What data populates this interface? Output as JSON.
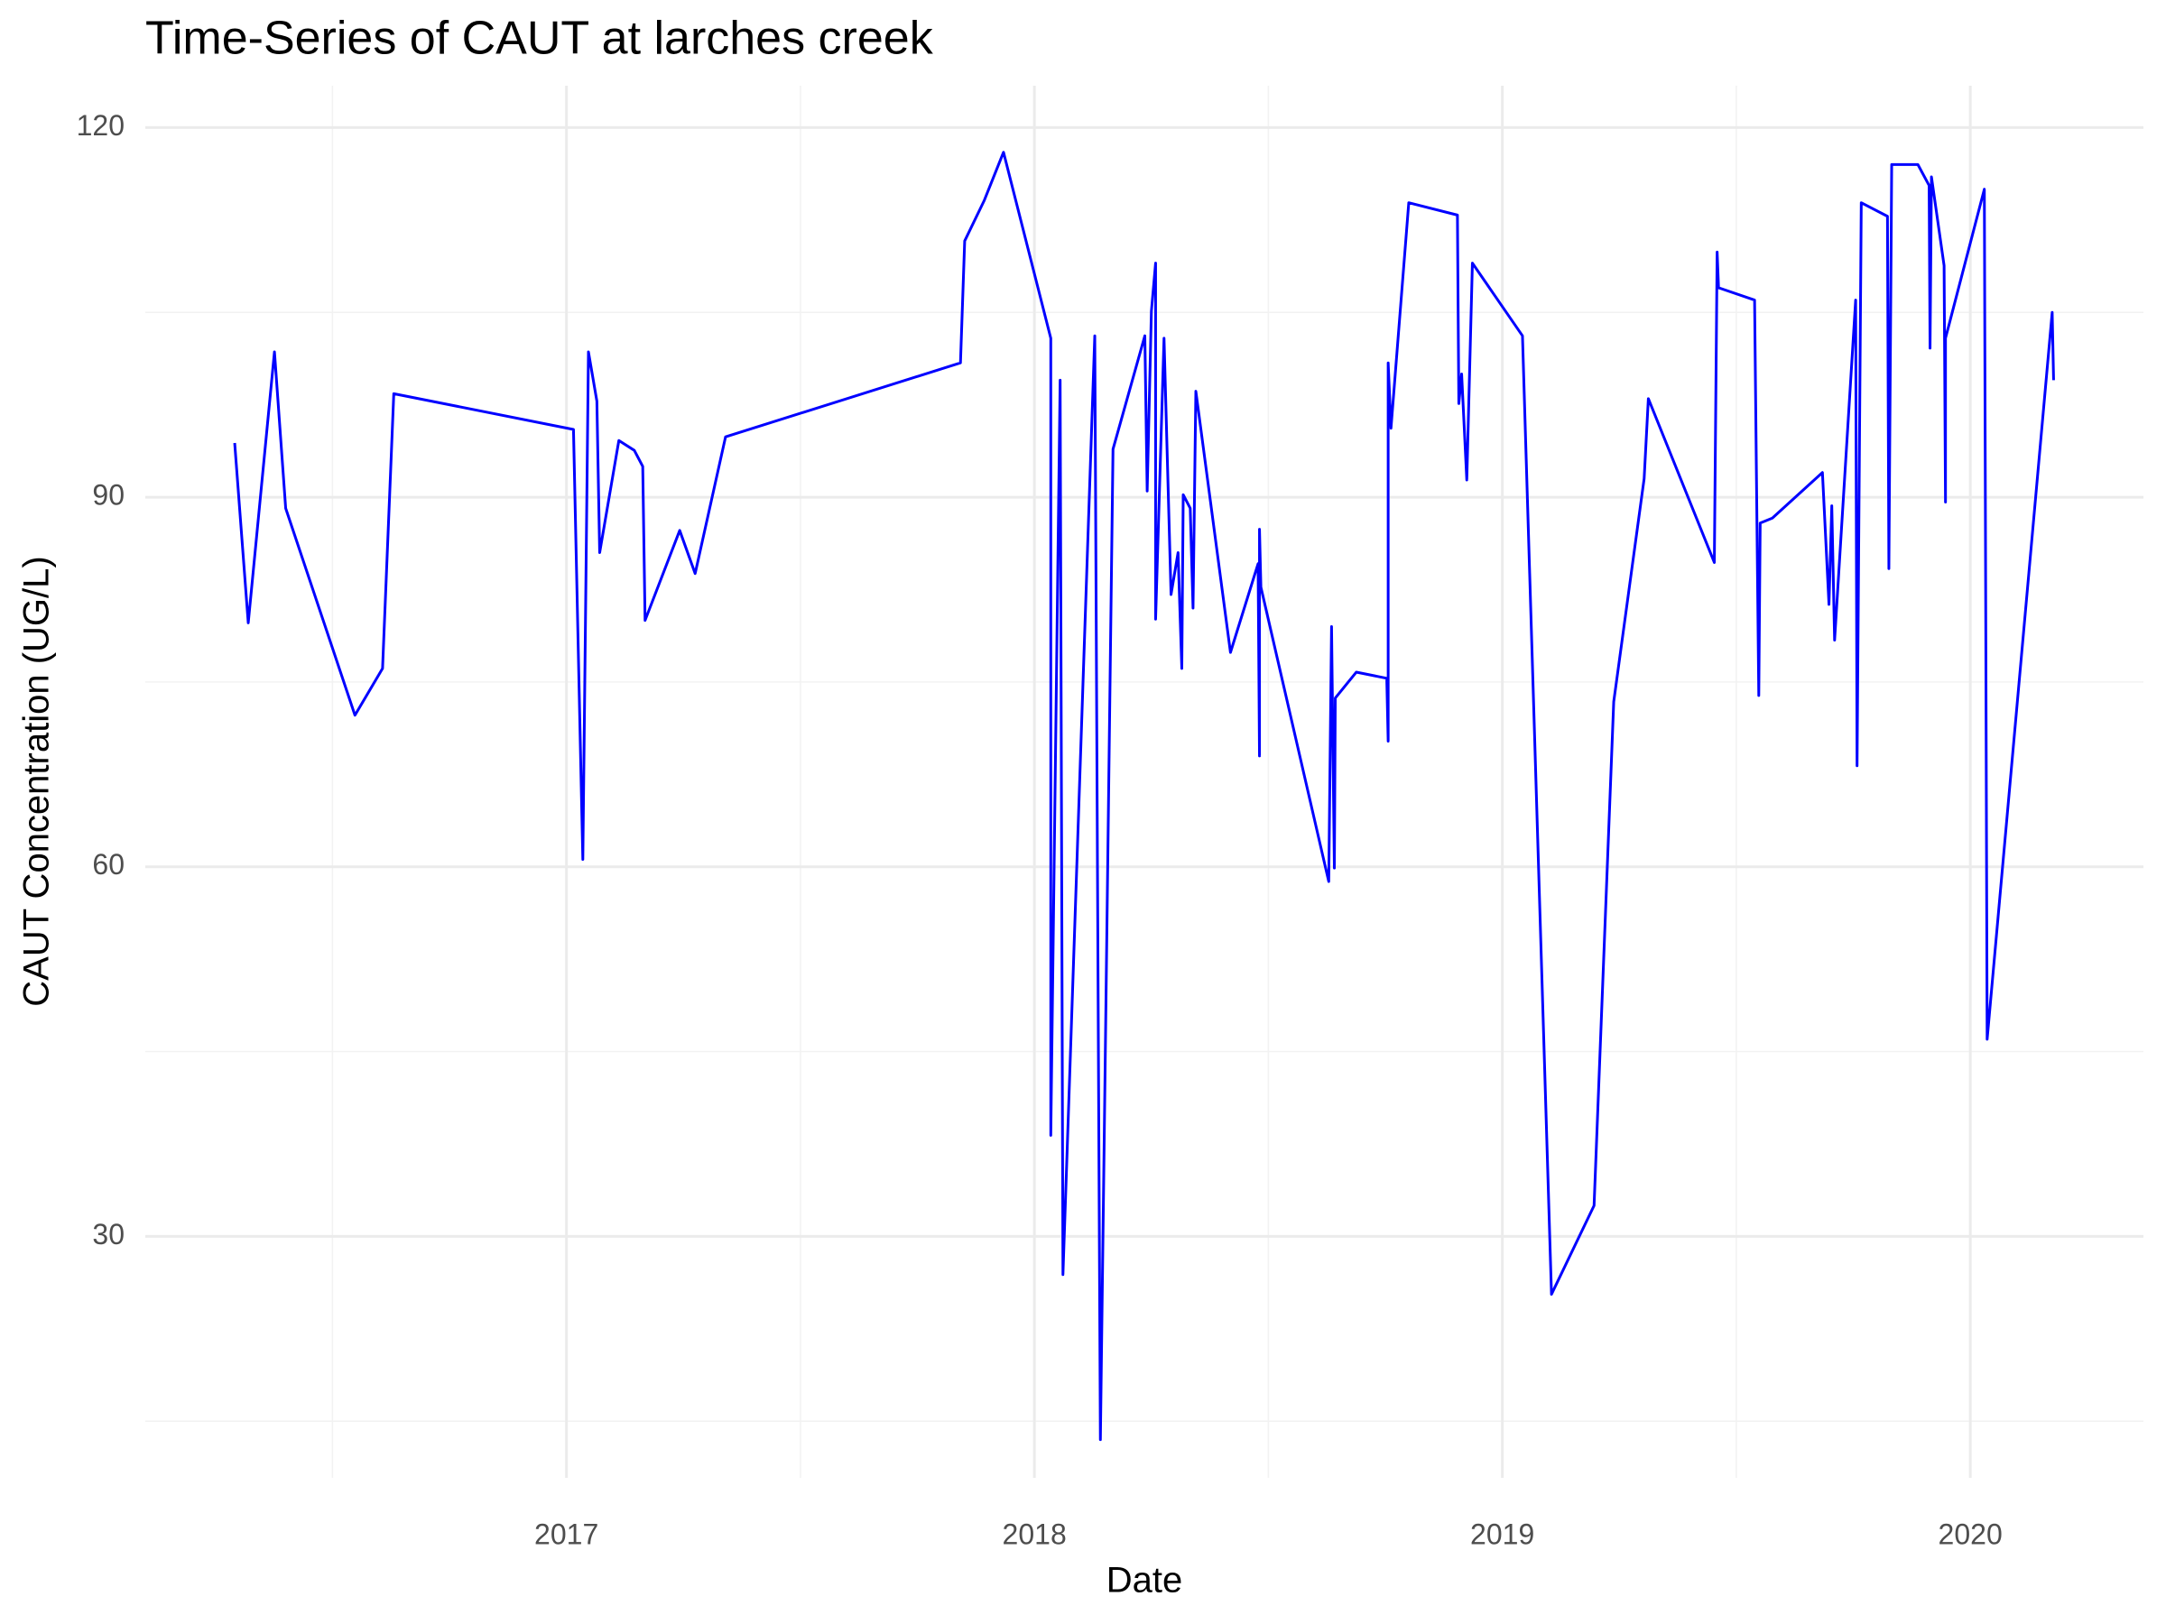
{
  "chart_data": {
    "type": "line",
    "title": "Time-Series of CAUT at larches creek",
    "x_label": "Date",
    "y_label": "CAUT Concentration (UG/L)",
    "xlim": [
      2016.1,
      2020.37
    ],
    "ylim": [
      10.4,
      123.4
    ],
    "xticks": [
      2017,
      2018,
      2019,
      2020
    ],
    "yticks": [
      30,
      60,
      90,
      120
    ],
    "grid": true,
    "minor_grid": true,
    "series": [
      {
        "name": "CAUT",
        "color": "#0000ff",
        "x": [
          2016.291,
          2016.32,
          2016.376,
          2016.4,
          2016.548,
          2016.607,
          2016.631,
          2017.015,
          2017.035,
          2017.047,
          2017.065,
          2017.071,
          2017.112,
          2017.145,
          2017.163,
          2017.168,
          2017.242,
          2017.275,
          2017.34,
          2017.842,
          2017.851,
          2017.893,
          2017.934,
          2018.035,
          2018.035,
          2018.055,
          2018.061,
          2018.129,
          2018.141,
          2018.168,
          2018.236,
          2018.241,
          2018.25,
          2018.259,
          2018.259,
          2018.277,
          2018.292,
          2018.307,
          2018.315,
          2018.318,
          2018.333,
          2018.339,
          2018.345,
          2018.419,
          2018.478,
          2018.481,
          2018.481,
          2018.484,
          2018.629,
          2018.635,
          2018.641,
          2018.643,
          2018.688,
          2018.753,
          2018.756,
          2018.756,
          2018.762,
          2018.8,
          2018.904,
          2018.907,
          2018.913,
          2018.924,
          2018.936,
          2019.043,
          2019.105,
          2019.196,
          2019.238,
          2019.303,
          2019.312,
          2019.453,
          2019.459,
          2019.462,
          2019.539,
          2019.548,
          2019.551,
          2019.577,
          2019.684,
          2019.698,
          2019.704,
          2019.71,
          2019.755,
          2019.758,
          2019.767,
          2019.823,
          2019.826,
          2019.832,
          2019.888,
          2019.912,
          2019.914,
          2019.917,
          2019.944,
          2019.947,
          2019.947,
          2020.03,
          2020.036,
          2020.175,
          2020.178
        ],
        "values": [
          94.4,
          79.8,
          101.8,
          89.1,
          72.3,
          76.1,
          98.4,
          95.5,
          60.6,
          101.8,
          97.8,
          85.5,
          94.6,
          93.8,
          92.5,
          80.0,
          87.3,
          83.8,
          94.9,
          100.9,
          110.8,
          114.1,
          118.0,
          102.9,
          38.2,
          99.5,
          26.9,
          103.1,
          13.5,
          93.9,
          103.1,
          90.5,
          105.1,
          109.0,
          80.1,
          102.9,
          82.1,
          85.5,
          76.1,
          90.2,
          89.1,
          81.0,
          98.6,
          77.4,
          84.6,
          69.0,
          87.4,
          82.7,
          58.8,
          79.5,
          59.9,
          73.7,
          75.8,
          75.3,
          70.2,
          100.9,
          95.6,
          113.9,
          112.9,
          97.6,
          100.0,
          91.4,
          109.0,
          103.1,
          25.3,
          32.5,
          73.4,
          91.5,
          98.0,
          84.7,
          109.9,
          107.0,
          106.0,
          73.9,
          87.9,
          88.3,
          92.0,
          81.3,
          89.3,
          78.4,
          106.0,
          68.2,
          113.9,
          112.8,
          84.2,
          117.0,
          117.0,
          115.3,
          102.1,
          116.0,
          108.8,
          89.6,
          102.9,
          115.0,
          46.0,
          105.0,
          99.5
        ]
      }
    ]
  }
}
